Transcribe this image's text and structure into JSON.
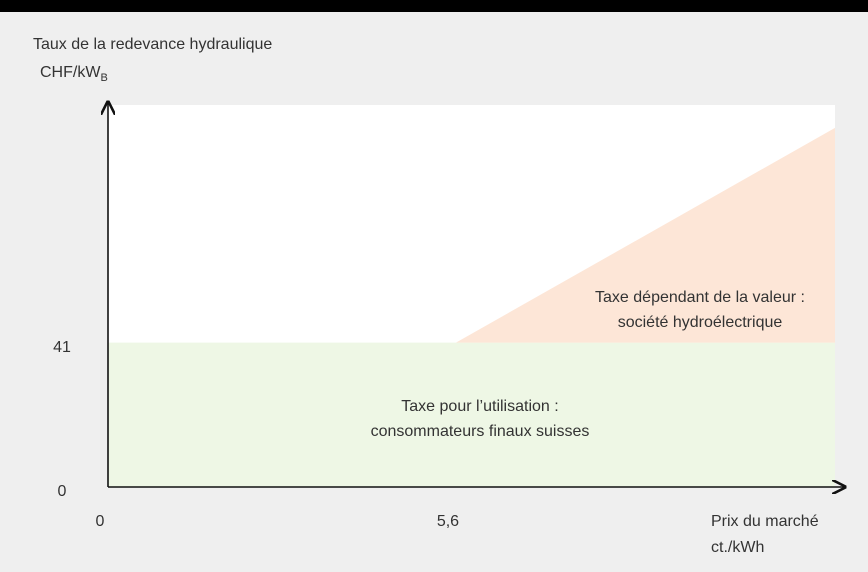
{
  "chart_data": {
    "type": "area",
    "ylabel": "Taux de la redevance hydraulique",
    "ylabel_unit": "CHF/kW",
    "ylabel_unit_sub": "B",
    "xlabel": "Prix du marché",
    "xlabel_unit": "ct./kWh",
    "x": [
      0,
      5.6,
      11.7
    ],
    "stacked": true,
    "series": [
      {
        "name_lines": [
          "Taxe pour l’utilisation :",
          "consommateurs finaux suisses"
        ],
        "color": "#eef7e5",
        "values": [
          41,
          41,
          41
        ]
      },
      {
        "name_lines": [
          "Taxe dépendant de la valeur :",
          "société hydroélectrique"
        ],
        "color": "#fde6d7",
        "values": [
          0,
          0,
          61
        ]
      }
    ],
    "xlim": [
      0,
      11.7
    ],
    "ylim": [
      0,
      108.5
    ],
    "xticks": [
      0,
      {
        "value": 5.6,
        "label": "5,6"
      }
    ],
    "yticks": [
      0,
      41
    ]
  }
}
